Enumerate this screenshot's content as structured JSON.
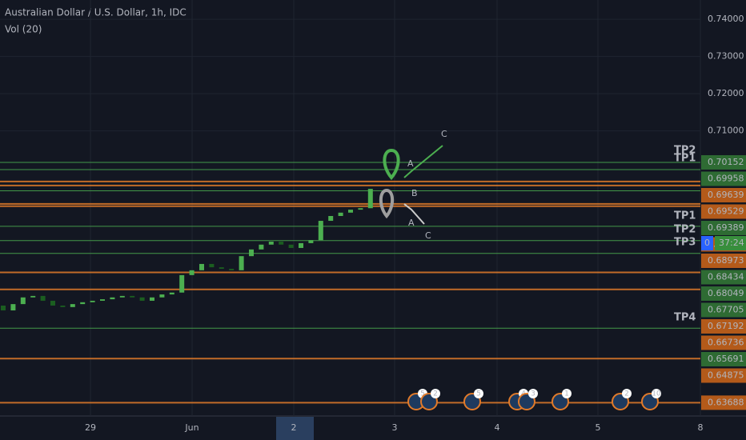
{
  "header": {
    "title": "Australian Dollar / U.S. Dollar, 1h, IDC",
    "indicator": "Vol (20)"
  },
  "chart_data": {
    "type": "candlestick",
    "open": [
      0.663,
      0.6617,
      0.6634,
      0.6652,
      0.6656,
      0.6643,
      0.663,
      0.6626,
      0.6634,
      0.6639,
      0.6643,
      0.6647,
      0.6652,
      0.6656,
      0.6652,
      0.6643,
      0.6652,
      0.666,
      0.6665,
      0.6712,
      0.6725,
      0.6742,
      0.6733,
      0.6729,
      0.6725,
      0.6763,
      0.6781,
      0.6794,
      0.6802,
      0.6794,
      0.6785,
      0.6798,
      0.6806,
      0.6858,
      0.6871,
      0.688,
      0.6888,
      0.6892
    ],
    "close": [
      0.6617,
      0.6634,
      0.6652,
      0.6656,
      0.6643,
      0.663,
      0.6626,
      0.6634,
      0.6639,
      0.6643,
      0.6647,
      0.6652,
      0.6656,
      0.6652,
      0.6643,
      0.6652,
      0.666,
      0.6665,
      0.6712,
      0.6725,
      0.6742,
      0.6733,
      0.6729,
      0.6725,
      0.6763,
      0.6781,
      0.6794,
      0.6802,
      0.6794,
      0.6785,
      0.6798,
      0.6806,
      0.6858,
      0.6871,
      0.688,
      0.6888,
      0.6892,
      0.6944
    ],
    "up_color": "#4caf50",
    "down_color": "#1b5e20",
    "ylim": [
      0.6333,
      0.7452
    ],
    "yticks": [
      {
        "value": 0.74,
        "label": "0.74000"
      },
      {
        "value": 0.73,
        "label": "0.73000"
      },
      {
        "value": 0.72,
        "label": "0.72000"
      },
      {
        "value": 0.71,
        "label": "0.71000"
      }
    ],
    "levels": [
      {
        "value": 0.70152,
        "color": "#4caf50"
      },
      {
        "value": 0.69958,
        "color": "#4caf50"
      },
      {
        "value": 0.69639,
        "color": "#e07a2a"
      },
      {
        "value": 0.69529,
        "color": "#e07a2a"
      },
      {
        "value": 0.69389,
        "color": "#4caf50"
      },
      {
        "value": 0.69035,
        "color": "#e07a2a"
      },
      {
        "value": 0.68973,
        "color": "#e07a2a"
      },
      {
        "value": 0.68434,
        "color": "#4caf50"
      },
      {
        "value": 0.68049,
        "color": "#4caf50"
      },
      {
        "value": 0.67705,
        "color": "#4caf50"
      },
      {
        "value": 0.67192,
        "color": "#e07a2a"
      },
      {
        "value": 0.66736,
        "color": "#e07a2a"
      },
      {
        "value": 0.65691,
        "color": "#4caf50"
      },
      {
        "value": 0.64875,
        "color": "#e07a2a"
      },
      {
        "value": 0.63688,
        "color": "#e07a2a"
      }
    ],
    "targets": [
      "TP2",
      "TP1",
      "TP1",
      "TP2",
      "TP3",
      "TP4"
    ],
    "annotations": [
      "C",
      "A",
      "B",
      "A",
      "C"
    ],
    "x_labels": [
      "29",
      "Jun",
      "2",
      "3",
      "4",
      "5",
      "8"
    ],
    "current": {
      "label": "0",
      "countdown": "37:24"
    },
    "events": [
      "5",
      "2",
      "5",
      "4",
      "3",
      "1",
      "2",
      "10"
    ]
  }
}
